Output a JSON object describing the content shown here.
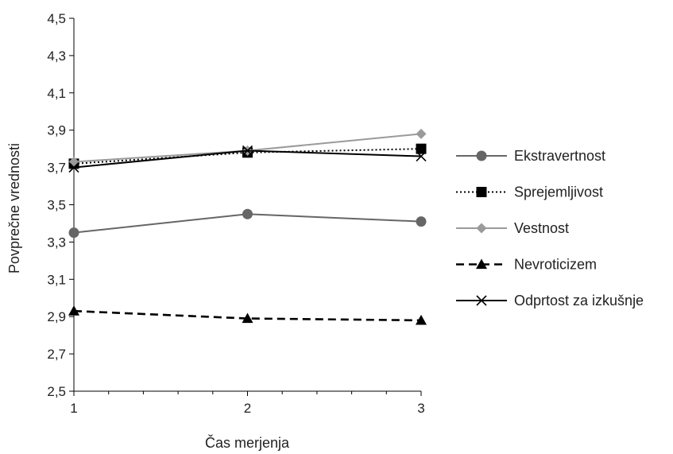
{
  "chart_data": {
    "type": "line",
    "title": "",
    "xlabel": "Čas merjenja",
    "ylabel": "Povprečne vrednosti",
    "x": [
      1,
      2,
      3
    ],
    "x_tick_labels": [
      "1",
      "2",
      "3"
    ],
    "ylim": [
      2.5,
      4.5
    ],
    "y_tick_labels": [
      "2,5",
      "2,7",
      "2,9",
      "3,1",
      "3,3",
      "3,5",
      "3,7",
      "3,9",
      "4,1",
      "4,3",
      "4,5"
    ],
    "grid": false,
    "legend_position": "right",
    "series": [
      {
        "name": "Ekstravertnost",
        "values": [
          3.35,
          3.45,
          3.41
        ],
        "color": "#666666",
        "line_style": "solid",
        "marker": "circle"
      },
      {
        "name": "Sprejemljivost",
        "values": [
          3.72,
          3.78,
          3.8
        ],
        "color": "#000000",
        "line_style": "dotted",
        "marker": "square"
      },
      {
        "name": "Vestnost",
        "values": [
          3.73,
          3.79,
          3.88
        ],
        "color": "#9a9a9a",
        "line_style": "solid",
        "marker": "diamond"
      },
      {
        "name": "Nevroticizem",
        "values": [
          2.93,
          2.89,
          2.88
        ],
        "color": "#000000",
        "line_style": "dashed",
        "marker": "triangle"
      },
      {
        "name": "Odprtost za izkušnje",
        "values": [
          3.7,
          3.79,
          3.76
        ],
        "color": "#000000",
        "line_style": "solid",
        "marker": "x"
      }
    ]
  }
}
